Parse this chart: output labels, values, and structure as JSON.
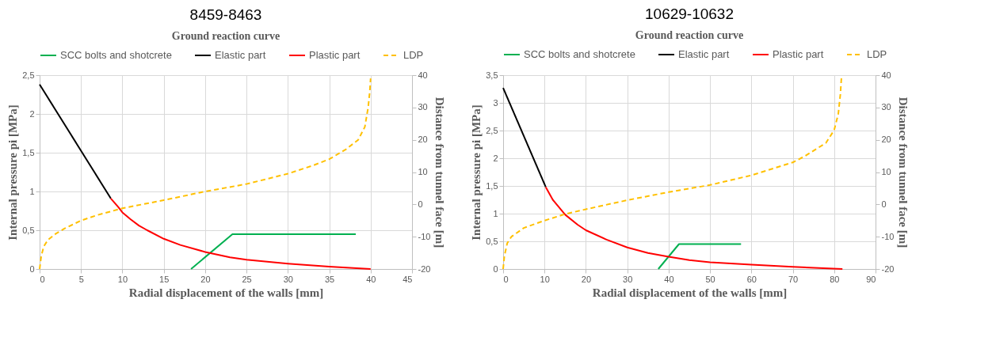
{
  "chart_data": [
    {
      "type": "line",
      "title": "8459-8463",
      "subtitle": "Ground reaction curve",
      "xlabel": "Radial displacement of the walls [mm]",
      "ylabel": "Internal pressure pi [MPa]",
      "y2label": "Distance from tunnel face [m]",
      "xlim": [
        0,
        45
      ],
      "xticks": [
        0,
        5,
        10,
        15,
        20,
        25,
        30,
        35,
        40,
        45
      ],
      "ylim": [
        0,
        2.5
      ],
      "yticks": [
        0,
        {
          "value": 0.5,
          "label": "0,5"
        },
        1,
        {
          "value": 1.5,
          "label": "1,5"
        },
        2,
        {
          "value": 2.5,
          "label": "2,5"
        }
      ],
      "y2lim": [
        -20,
        40
      ],
      "y2ticks": [
        -20,
        -10,
        0,
        10,
        20,
        30,
        40
      ],
      "grid": true,
      "legend": "top",
      "series": [
        {
          "name": "SCC bolts and shotcrete",
          "color": "#00b050",
          "line_style": "solid",
          "x": [
            18.3,
            23.3,
            38.2
          ],
          "values": [
            0,
            0.45,
            0.45
          ]
        },
        {
          "name": "Elastic part",
          "color": "#000000",
          "line_style": "solid",
          "x": [
            0,
            8.6
          ],
          "values": [
            2.38,
            0.91
          ]
        },
        {
          "name": "Plastic part",
          "color": "#ff0000",
          "line_style": "solid",
          "x": [
            8.6,
            9.5,
            10,
            11,
            12,
            13,
            15,
            17,
            20,
            23,
            25,
            30,
            35,
            40
          ],
          "values": [
            0.91,
            0.8,
            0.73,
            0.64,
            0.56,
            0.5,
            0.39,
            0.31,
            0.22,
            0.15,
            0.12,
            0.07,
            0.03,
            0
          ]
        },
        {
          "name": "LDP",
          "color": "#ffc000",
          "line_style": "dashed",
          "axis": "y2",
          "x": [
            0,
            0.2,
            0.5,
            1,
            2,
            3,
            5,
            7,
            10,
            15,
            20,
            25,
            30,
            33,
            35,
            37,
            38.5,
            39.3,
            39.7,
            39.9,
            40
          ],
          "values": [
            -20,
            -16,
            -13,
            -11,
            -9,
            -7.5,
            -5,
            -3.3,
            -1.2,
            1.3,
            4,
            6.3,
            9.5,
            12,
            14,
            17,
            20,
            24,
            30,
            35,
            39
          ]
        }
      ]
    },
    {
      "type": "line",
      "title": "10629-10632",
      "subtitle": "Ground reaction curve",
      "xlabel": "Radial displacement of the walls [mm]",
      "ylabel": "Internal pressure pi [MPa]",
      "y2label": "Distance from tunnel face [m]",
      "xlim": [
        0,
        90
      ],
      "xticks": [
        0,
        10,
        20,
        30,
        40,
        50,
        60,
        70,
        80,
        90
      ],
      "ylim": [
        0,
        3.5
      ],
      "yticks": [
        0,
        {
          "value": 0.5,
          "label": "0,5"
        },
        1,
        {
          "value": 1.5,
          "label": "1,5"
        },
        2,
        {
          "value": 2.5,
          "label": "2,5"
        },
        3,
        {
          "value": 3.5,
          "label": "3,5"
        }
      ],
      "y2lim": [
        -20,
        40
      ],
      "y2ticks": [
        -20,
        -10,
        0,
        10,
        20,
        30,
        40
      ],
      "grid": true,
      "legend": "top",
      "series": [
        {
          "name": "SCC bolts and shotcrete",
          "color": "#00b050",
          "line_style": "solid",
          "x": [
            37.5,
            42.5,
            57.5
          ],
          "values": [
            0,
            0.45,
            0.45
          ]
        },
        {
          "name": "Elastic part",
          "color": "#000000",
          "line_style": "solid",
          "x": [
            0,
            10.3
          ],
          "values": [
            3.27,
            1.48
          ]
        },
        {
          "name": "Plastic part",
          "color": "#ff0000",
          "line_style": "solid",
          "x": [
            10.3,
            12,
            15,
            18,
            20,
            25,
            30,
            35,
            40,
            45,
            50,
            60,
            70,
            82
          ],
          "values": [
            1.48,
            1.25,
            0.98,
            0.8,
            0.7,
            0.53,
            0.39,
            0.29,
            0.22,
            0.16,
            0.12,
            0.08,
            0.04,
            0
          ]
        },
        {
          "name": "LDP",
          "color": "#ffc000",
          "line_style": "dashed",
          "axis": "y2",
          "x": [
            0,
            0.3,
            1,
            2,
            5,
            10,
            15,
            20,
            30,
            40,
            50,
            60,
            70,
            73,
            78,
            80,
            81,
            81.5,
            81.8
          ],
          "values": [
            -20,
            -16,
            -12,
            -10,
            -7.3,
            -5,
            -3,
            -1.5,
            1.3,
            3.8,
            6,
            9,
            13,
            15,
            19,
            23,
            28,
            34,
            40
          ]
        }
      ]
    }
  ]
}
